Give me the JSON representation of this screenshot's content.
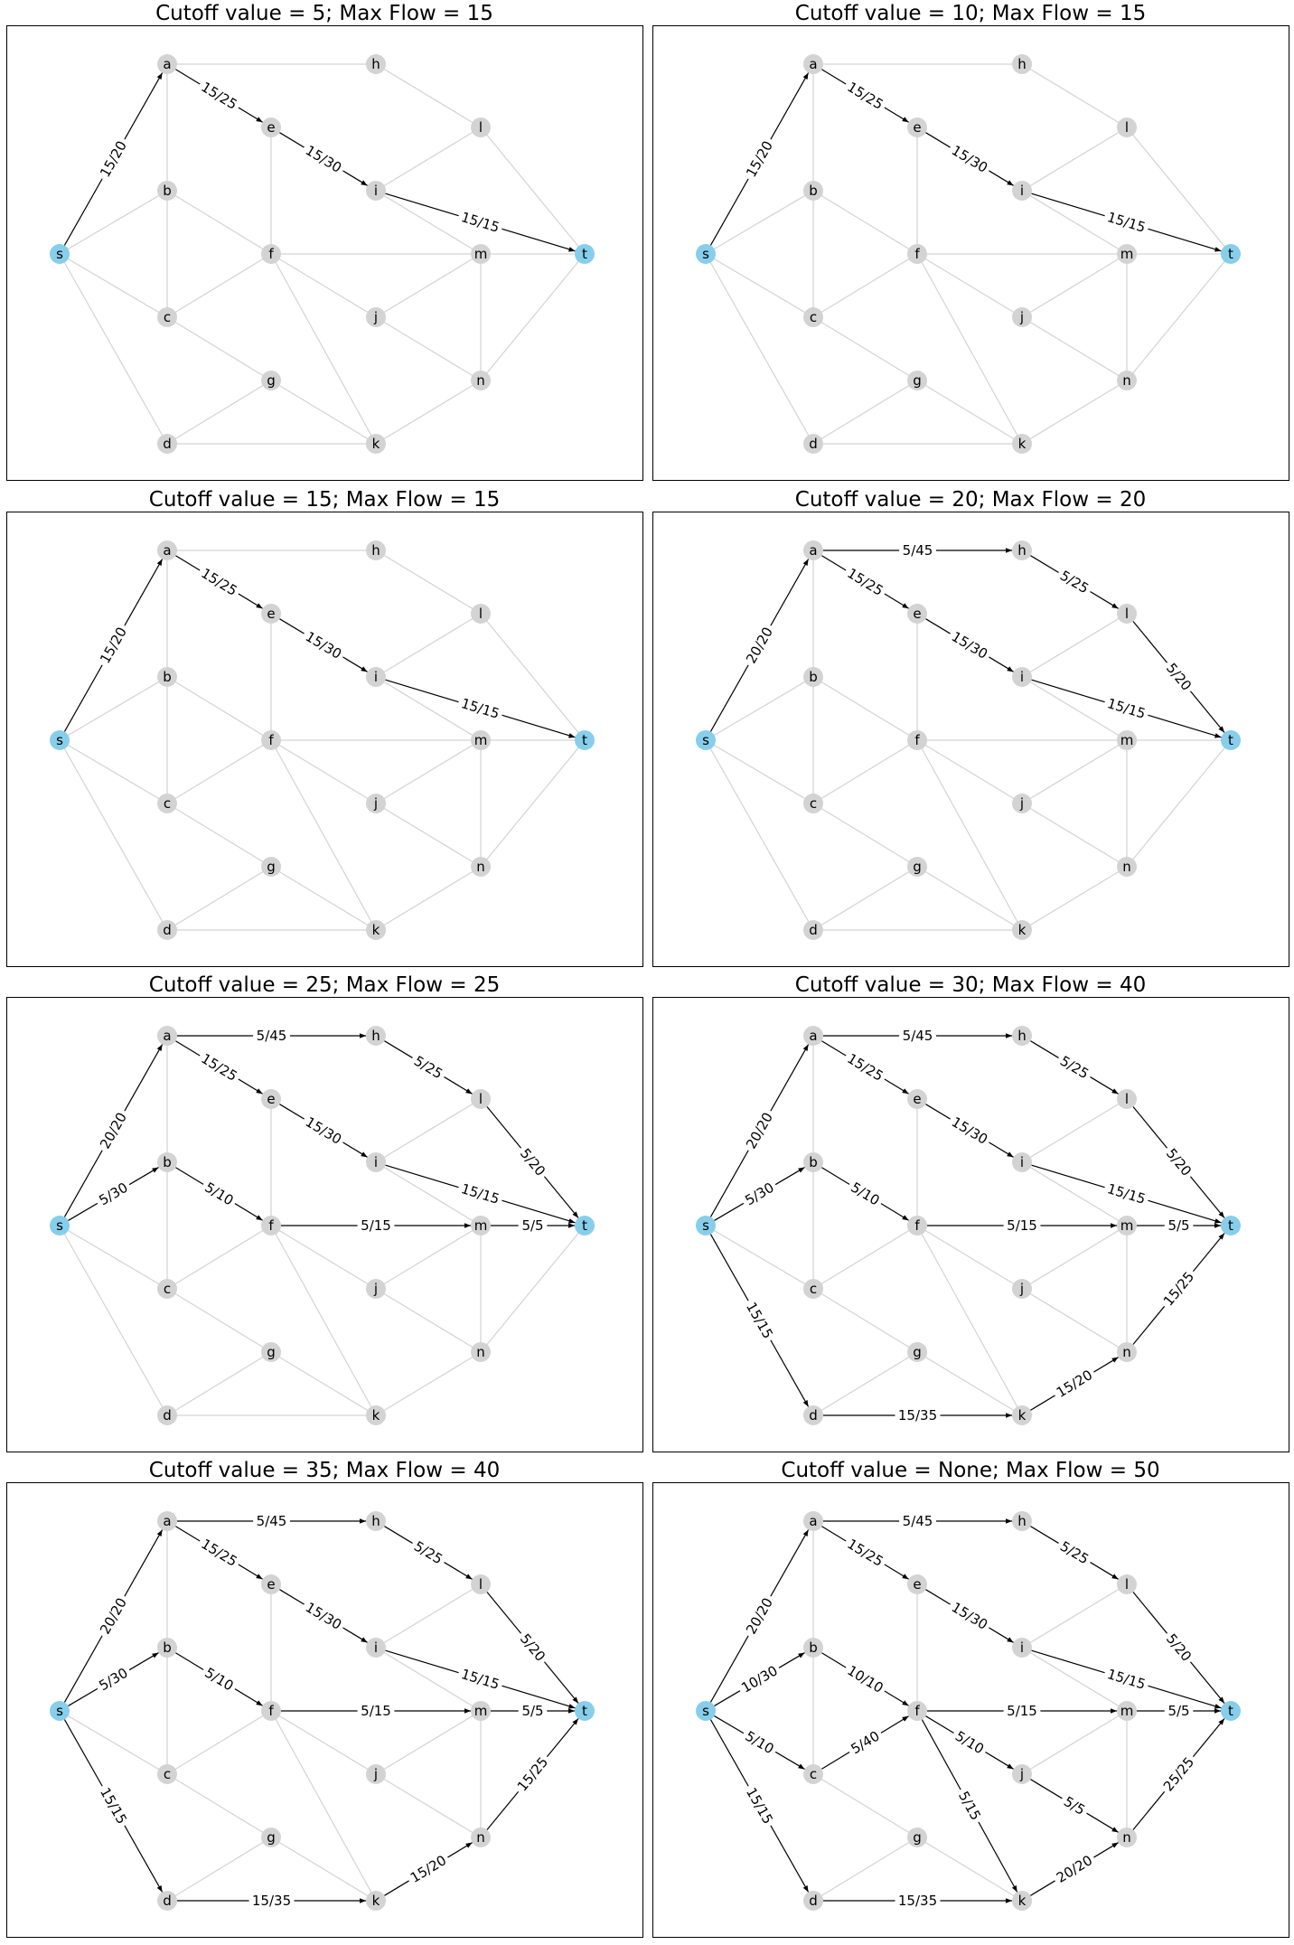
{
  "colors": {
    "node_default": "#d3d3d3",
    "node_terminal": "#87ceeb",
    "edge_idle": "#d3d3d3",
    "edge_flow": "#000000"
  },
  "nodes": [
    "a",
    "b",
    "c",
    "d",
    "e",
    "f",
    "g",
    "h",
    "i",
    "j",
    "k",
    "l",
    "m",
    "n",
    "s",
    "t"
  ],
  "terminal_nodes": [
    "s",
    "t"
  ],
  "edges": [
    [
      "s",
      "a"
    ],
    [
      "s",
      "b"
    ],
    [
      "s",
      "c"
    ],
    [
      "s",
      "d"
    ],
    [
      "a",
      "h"
    ],
    [
      "a",
      "e"
    ],
    [
      "a",
      "b"
    ],
    [
      "b",
      "f"
    ],
    [
      "b",
      "c"
    ],
    [
      "c",
      "f"
    ],
    [
      "c",
      "g"
    ],
    [
      "d",
      "k"
    ],
    [
      "d",
      "g"
    ],
    [
      "e",
      "i"
    ],
    [
      "e",
      "f"
    ],
    [
      "f",
      "m"
    ],
    [
      "f",
      "j"
    ],
    [
      "f",
      "k"
    ],
    [
      "g",
      "k"
    ],
    [
      "h",
      "l"
    ],
    [
      "i",
      "l"
    ],
    [
      "i",
      "m"
    ],
    [
      "i",
      "t"
    ],
    [
      "j",
      "m"
    ],
    [
      "j",
      "n"
    ],
    [
      "k",
      "n"
    ],
    [
      "l",
      "t"
    ],
    [
      "m",
      "t"
    ],
    [
      "m",
      "n"
    ],
    [
      "n",
      "t"
    ]
  ],
  "panels": [
    {
      "title": "Cutoff value = 5; Max Flow = 15",
      "flows": [
        {
          "from": "s",
          "to": "a",
          "label": "15/20"
        },
        {
          "from": "a",
          "to": "e",
          "label": "15/25"
        },
        {
          "from": "e",
          "to": "i",
          "label": "15/30"
        },
        {
          "from": "i",
          "to": "t",
          "label": "15/15"
        }
      ]
    },
    {
      "title": "Cutoff value = 10; Max Flow = 15",
      "flows": [
        {
          "from": "s",
          "to": "a",
          "label": "15/20"
        },
        {
          "from": "a",
          "to": "e",
          "label": "15/25"
        },
        {
          "from": "e",
          "to": "i",
          "label": "15/30"
        },
        {
          "from": "i",
          "to": "t",
          "label": "15/15"
        }
      ]
    },
    {
      "title": "Cutoff value = 15; Max Flow = 15",
      "flows": [
        {
          "from": "s",
          "to": "a",
          "label": "15/20"
        },
        {
          "from": "a",
          "to": "e",
          "label": "15/25"
        },
        {
          "from": "e",
          "to": "i",
          "label": "15/30"
        },
        {
          "from": "i",
          "to": "t",
          "label": "15/15"
        }
      ]
    },
    {
      "title": "Cutoff value = 20; Max Flow = 20",
      "flows": [
        {
          "from": "s",
          "to": "a",
          "label": "20/20"
        },
        {
          "from": "a",
          "to": "h",
          "label": "5/45"
        },
        {
          "from": "h",
          "to": "l",
          "label": "5/25"
        },
        {
          "from": "l",
          "to": "t",
          "label": "5/20"
        },
        {
          "from": "a",
          "to": "e",
          "label": "15/25"
        },
        {
          "from": "e",
          "to": "i",
          "label": "15/30"
        },
        {
          "from": "i",
          "to": "t",
          "label": "15/15"
        }
      ]
    },
    {
      "title": "Cutoff value = 25; Max Flow = 25",
      "flows": [
        {
          "from": "s",
          "to": "a",
          "label": "20/20"
        },
        {
          "from": "s",
          "to": "b",
          "label": "5/30"
        },
        {
          "from": "a",
          "to": "h",
          "label": "5/45"
        },
        {
          "from": "h",
          "to": "l",
          "label": "5/25"
        },
        {
          "from": "l",
          "to": "t",
          "label": "5/20"
        },
        {
          "from": "a",
          "to": "e",
          "label": "15/25"
        },
        {
          "from": "e",
          "to": "i",
          "label": "15/30"
        },
        {
          "from": "i",
          "to": "t",
          "label": "15/15"
        },
        {
          "from": "b",
          "to": "f",
          "label": "5/10"
        },
        {
          "from": "f",
          "to": "m",
          "label": "5/15"
        },
        {
          "from": "m",
          "to": "t",
          "label": "5/5"
        }
      ]
    },
    {
      "title": "Cutoff value = 30; Max Flow = 40",
      "flows": [
        {
          "from": "s",
          "to": "a",
          "label": "20/20"
        },
        {
          "from": "s",
          "to": "b",
          "label": "5/30"
        },
        {
          "from": "s",
          "to": "d",
          "label": "15/15"
        },
        {
          "from": "a",
          "to": "h",
          "label": "5/45"
        },
        {
          "from": "h",
          "to": "l",
          "label": "5/25"
        },
        {
          "from": "l",
          "to": "t",
          "label": "5/20"
        },
        {
          "from": "a",
          "to": "e",
          "label": "15/25"
        },
        {
          "from": "e",
          "to": "i",
          "label": "15/30"
        },
        {
          "from": "i",
          "to": "t",
          "label": "15/15"
        },
        {
          "from": "b",
          "to": "f",
          "label": "5/10"
        },
        {
          "from": "f",
          "to": "m",
          "label": "5/15"
        },
        {
          "from": "m",
          "to": "t",
          "label": "5/5"
        },
        {
          "from": "d",
          "to": "k",
          "label": "15/35"
        },
        {
          "from": "k",
          "to": "n",
          "label": "15/20"
        },
        {
          "from": "n",
          "to": "t",
          "label": "15/25"
        }
      ]
    },
    {
      "title": "Cutoff value = 35; Max Flow = 40",
      "flows": [
        {
          "from": "s",
          "to": "a",
          "label": "20/20"
        },
        {
          "from": "s",
          "to": "b",
          "label": "5/30"
        },
        {
          "from": "s",
          "to": "d",
          "label": "15/15"
        },
        {
          "from": "a",
          "to": "h",
          "label": "5/45"
        },
        {
          "from": "h",
          "to": "l",
          "label": "5/25"
        },
        {
          "from": "l",
          "to": "t",
          "label": "5/20"
        },
        {
          "from": "a",
          "to": "e",
          "label": "15/25"
        },
        {
          "from": "e",
          "to": "i",
          "label": "15/30"
        },
        {
          "from": "i",
          "to": "t",
          "label": "15/15"
        },
        {
          "from": "b",
          "to": "f",
          "label": "5/10"
        },
        {
          "from": "f",
          "to": "m",
          "label": "5/15"
        },
        {
          "from": "m",
          "to": "t",
          "label": "5/5"
        },
        {
          "from": "d",
          "to": "k",
          "label": "15/35"
        },
        {
          "from": "k",
          "to": "n",
          "label": "15/20"
        },
        {
          "from": "n",
          "to": "t",
          "label": "15/25"
        }
      ]
    },
    {
      "title": "Cutoff value = None; Max Flow = 50",
      "flows": [
        {
          "from": "s",
          "to": "a",
          "label": "20/20"
        },
        {
          "from": "s",
          "to": "b",
          "label": "10/30"
        },
        {
          "from": "s",
          "to": "c",
          "label": "5/10"
        },
        {
          "from": "s",
          "to": "d",
          "label": "15/15"
        },
        {
          "from": "a",
          "to": "h",
          "label": "5/45"
        },
        {
          "from": "h",
          "to": "l",
          "label": "5/25"
        },
        {
          "from": "l",
          "to": "t",
          "label": "5/20"
        },
        {
          "from": "a",
          "to": "e",
          "label": "15/25"
        },
        {
          "from": "e",
          "to": "i",
          "label": "15/30"
        },
        {
          "from": "i",
          "to": "t",
          "label": "15/15"
        },
        {
          "from": "b",
          "to": "f",
          "label": "10/10"
        },
        {
          "from": "c",
          "to": "f",
          "label": "5/40"
        },
        {
          "from": "f",
          "to": "m",
          "label": "5/15"
        },
        {
          "from": "m",
          "to": "t",
          "label": "5/5"
        },
        {
          "from": "f",
          "to": "j",
          "label": "5/10"
        },
        {
          "from": "j",
          "to": "n",
          "label": "5/5"
        },
        {
          "from": "f",
          "to": "k",
          "label": "5/15"
        },
        {
          "from": "d",
          "to": "k",
          "label": "15/35"
        },
        {
          "from": "k",
          "to": "n",
          "label": "20/20"
        },
        {
          "from": "n",
          "to": "t",
          "label": "25/25"
        }
      ]
    }
  ]
}
